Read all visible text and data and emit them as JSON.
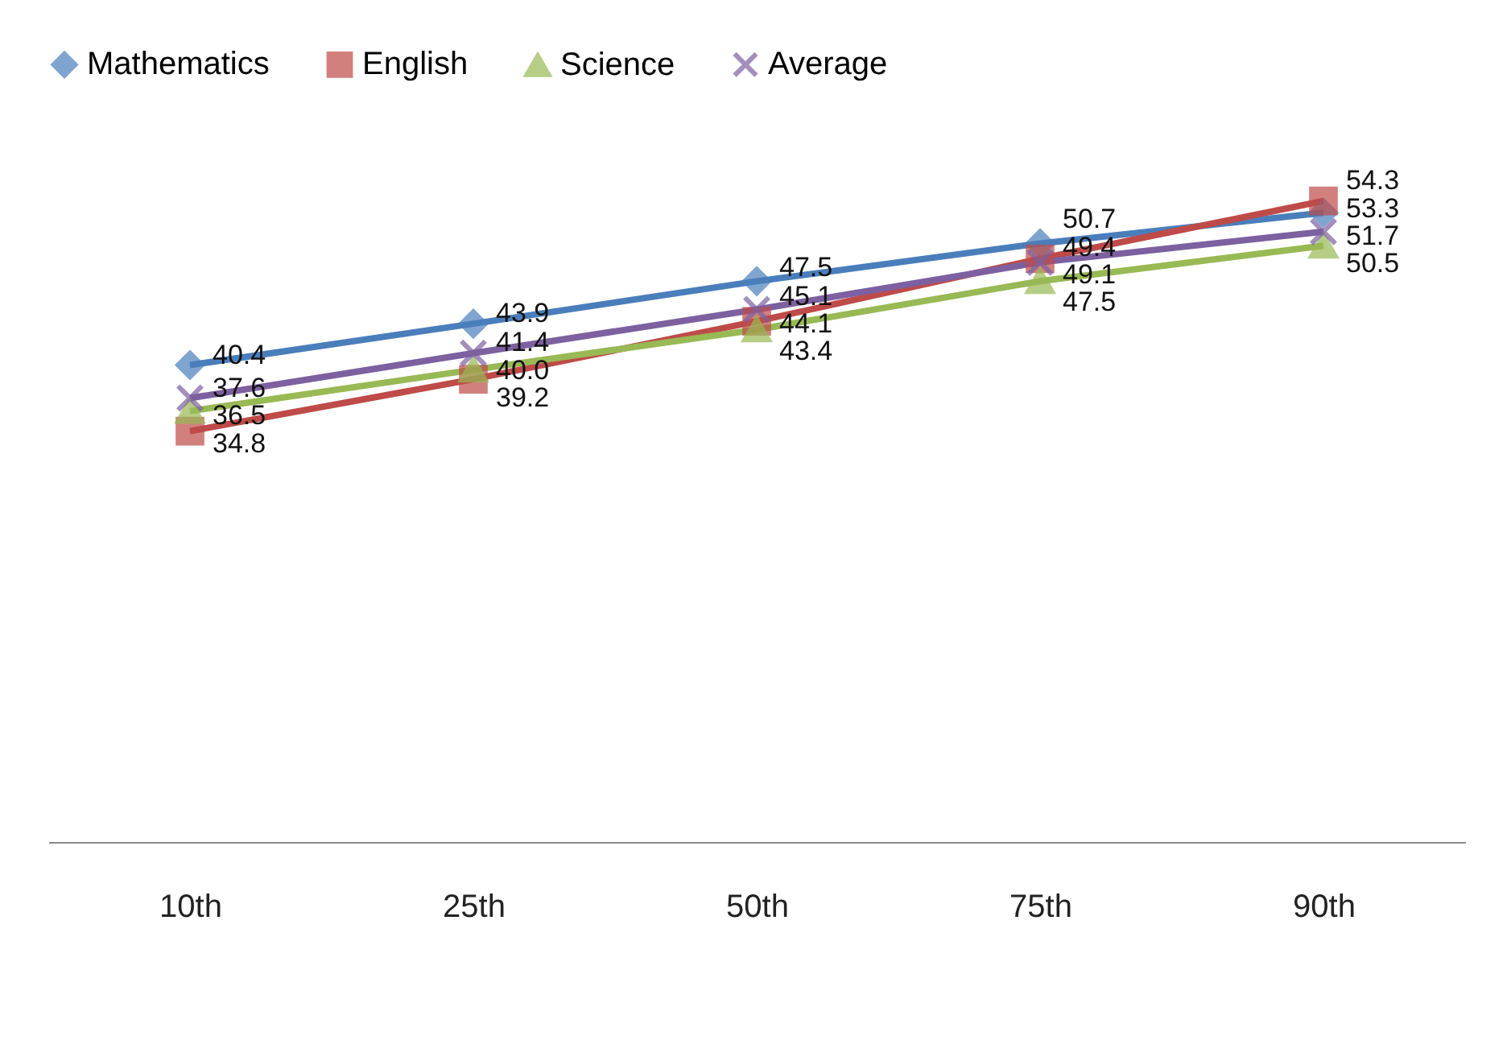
{
  "chart_data": {
    "type": "line",
    "categories": [
      "10th",
      "25th",
      "50th",
      "75th",
      "90th"
    ],
    "series": [
      {
        "name": "Mathematics",
        "color": "#4a7ebb",
        "marker": "diamond",
        "values": [
          40.4,
          43.9,
          47.5,
          50.7,
          53.3
        ]
      },
      {
        "name": "English",
        "color": "#be4b48",
        "marker": "square",
        "values": [
          34.8,
          39.2,
          44.1,
          49.4,
          54.3
        ]
      },
      {
        "name": "Science",
        "color": "#98b954",
        "marker": "triangle",
        "values": [
          36.5,
          40.0,
          43.4,
          47.5,
          50.5
        ],
        "value_labels": [
          "36.5",
          "40.0",
          "43.4",
          "47.5",
          "50.5"
        ]
      },
      {
        "name": "Average",
        "color": "#7d60a0",
        "marker": "cross",
        "values": [
          37.6,
          41.4,
          45.1,
          49.1,
          51.7
        ]
      }
    ],
    "line_style": "solid",
    "data_labels": true,
    "legend": "top"
  }
}
